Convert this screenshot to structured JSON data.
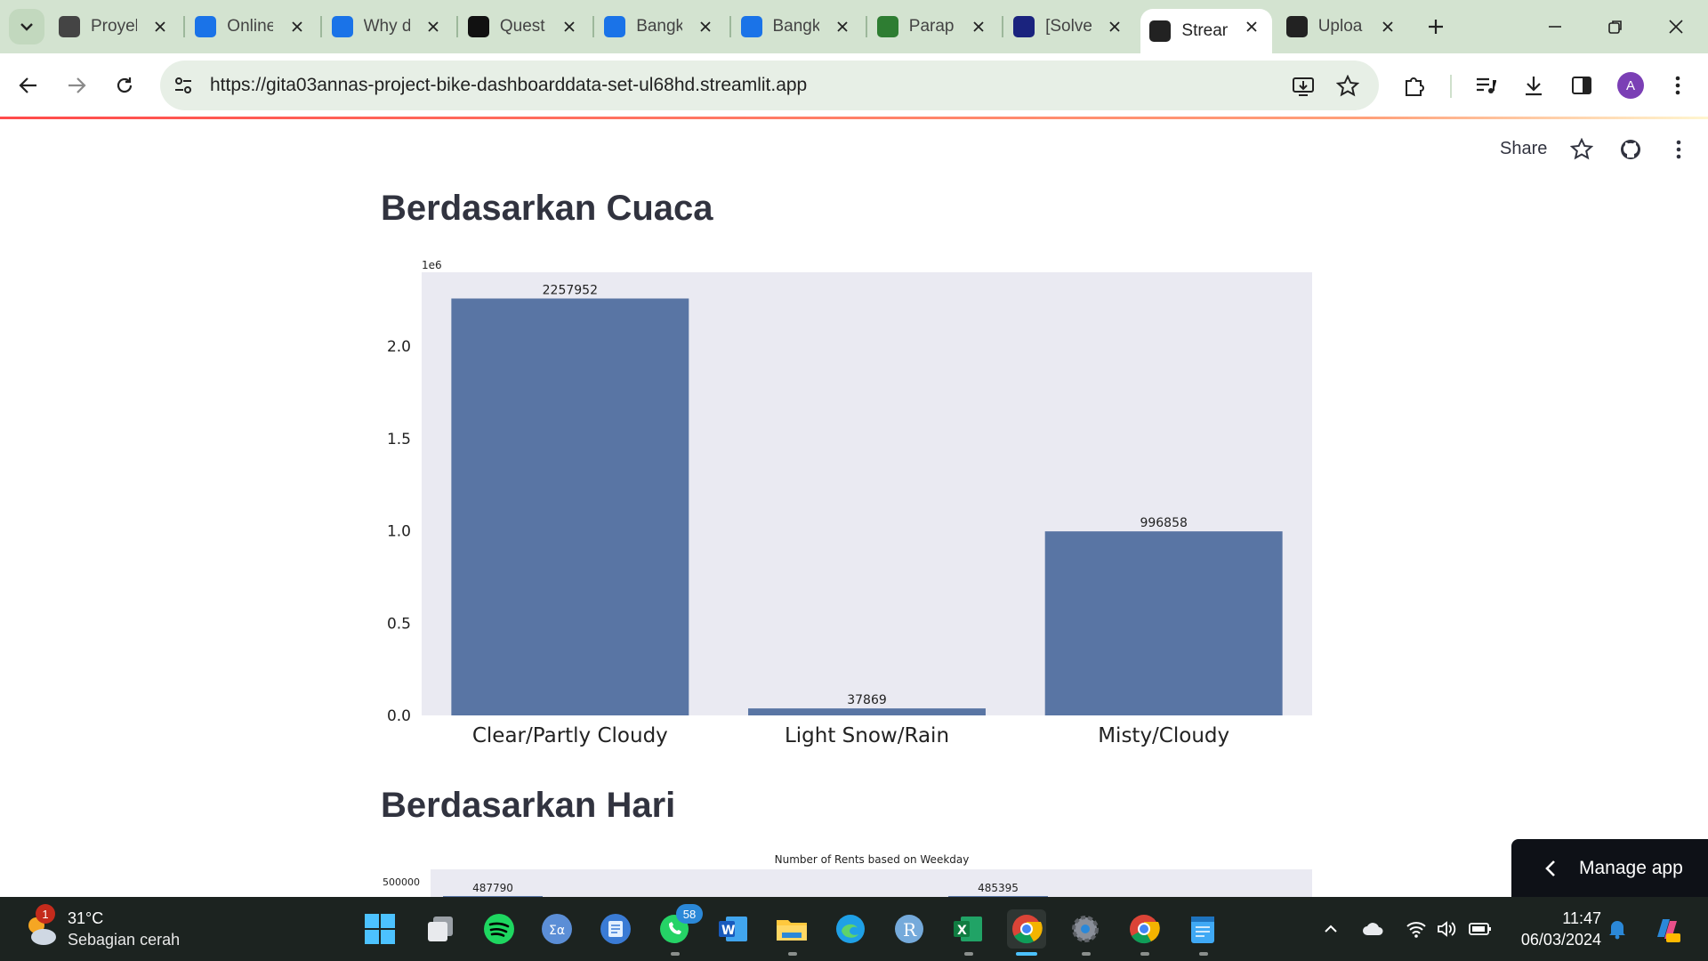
{
  "browser": {
    "tabs": [
      {
        "label": "Proyek",
        "icon": "g-site-icon",
        "color": "#444444"
      },
      {
        "label": "Online",
        "icon": "classroom-icon",
        "color": "#1a73e8"
      },
      {
        "label": "Why d",
        "icon": "c-site-icon",
        "color": "#1a73e8"
      },
      {
        "label": "Quest",
        "icon": "b-site-icon",
        "color": "#111111"
      },
      {
        "label": "Bangk",
        "icon": "calendar-icon",
        "color": "#1a73e8"
      },
      {
        "label": "Bangk",
        "icon": "c-site-icon",
        "color": "#1a73e8"
      },
      {
        "label": "Parap",
        "icon": "robot-icon",
        "color": "#2e7d32"
      },
      {
        "label": "[Solve",
        "icon": "star-site-icon",
        "color": "#1a237e"
      },
      {
        "label": "Stream",
        "icon": "streamlit-icon",
        "color": "#222222"
      },
      {
        "label": "Uploa",
        "icon": "github-icon",
        "color": "#222222"
      }
    ],
    "url": "https://gita03annas-project-bike-dashboarddata-set-ul68hd.streamlit.app",
    "avatar_letter": "A"
  },
  "streamlit": {
    "share_label": "Share",
    "section1_title": "Berdasarkan Cuaca",
    "section2_title": "Berdasarkan Hari",
    "manage_app_label": "Manage app"
  },
  "chart_data": [
    {
      "type": "bar",
      "title": "",
      "categories": [
        "Clear/Partly Cloudy",
        "Light Snow/Rain",
        "Misty/Cloudy"
      ],
      "values": [
        2257952,
        37869,
        996858
      ],
      "value_labels": [
        "2257952",
        "37869",
        "996858"
      ],
      "ylim": [
        0,
        2400000
      ],
      "yticks": [
        0,
        500000,
        1000000,
        1500000,
        2000000
      ],
      "ytick_labels": [
        "0.0",
        "0.5",
        "1.0",
        "1.5",
        "2.0"
      ],
      "offset_label": "1e6",
      "bar_color": "#5975a4",
      "bg_color": "#eaeaf2"
    },
    {
      "type": "bar",
      "title": "Number of Rents based on Weekday",
      "visible_values": [
        487790,
        485395
      ],
      "value_labels": [
        "487790",
        "485395"
      ],
      "ytick_labels": [
        "500000"
      ],
      "bar_color": "#5975a4",
      "bg_color": "#eaeaf2"
    }
  ],
  "taskbar": {
    "weather_temp": "31°C",
    "weather_desc": "Sebagian cerah",
    "weather_badge": "1",
    "whatsapp_badge": "58",
    "time": "11:47",
    "date": "06/03/2024"
  }
}
